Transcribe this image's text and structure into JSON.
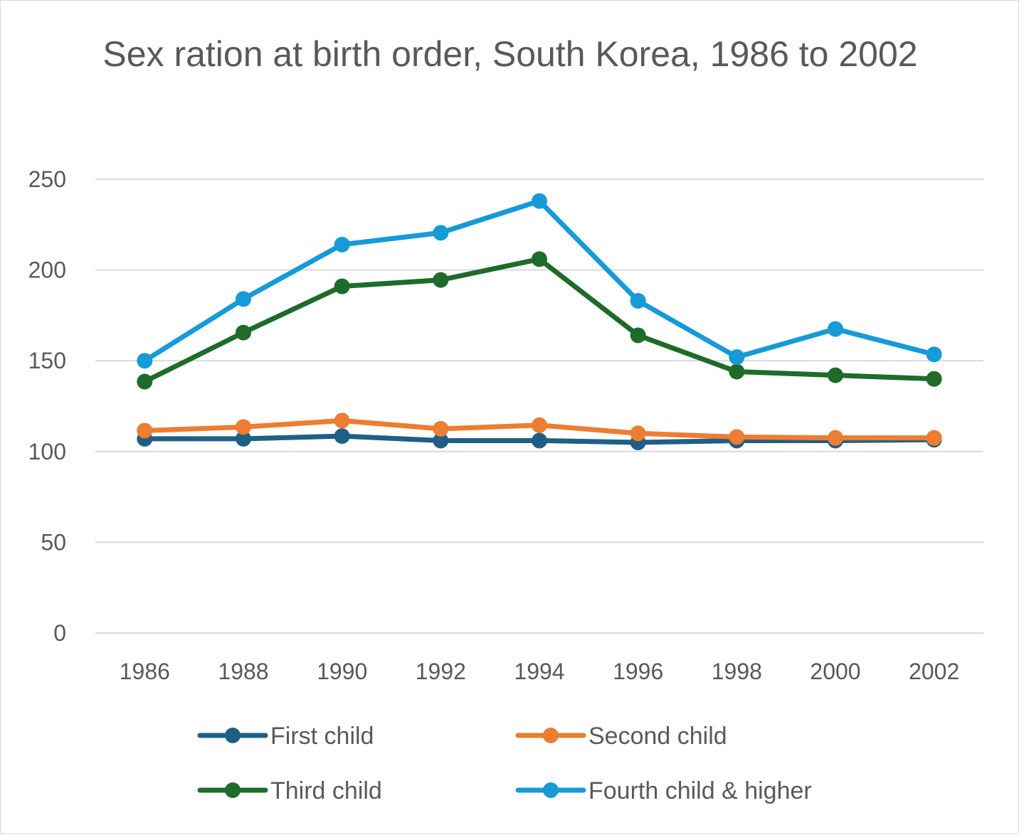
{
  "chart_data": {
    "type": "line",
    "title": "Sex ration at birth order, South Korea, 1986 to 2002",
    "xlabel": "",
    "ylabel": "",
    "categories": [
      "1986",
      "1988",
      "1990",
      "1992",
      "1994",
      "1996",
      "1998",
      "2000",
      "2002"
    ],
    "ylim": [
      0,
      250
    ],
    "yticks": [
      "0",
      "50",
      "100",
      "150",
      "200",
      "250"
    ],
    "grid": true,
    "legend_position": "bottom",
    "series": [
      {
        "name": "First child",
        "color": "#1f5f85",
        "values": [
          107,
          107,
          108.5,
          106,
          106,
          105,
          106,
          106,
          106.5
        ]
      },
      {
        "name": "Second child",
        "color": "#ed7d31",
        "values": [
          111.5,
          113.5,
          117,
          112.5,
          114.5,
          110,
          108,
          107.5,
          107.5
        ]
      },
      {
        "name": "Third child",
        "color": "#1e6b2a",
        "values": [
          138.5,
          165.5,
          191,
          194.5,
          206,
          164,
          144,
          142,
          140
        ]
      },
      {
        "name": "Fourth child & higher",
        "color": "#169ad8",
        "values": [
          150,
          184,
          214,
          220.5,
          238,
          183,
          152,
          167.5,
          153.5
        ]
      }
    ]
  }
}
